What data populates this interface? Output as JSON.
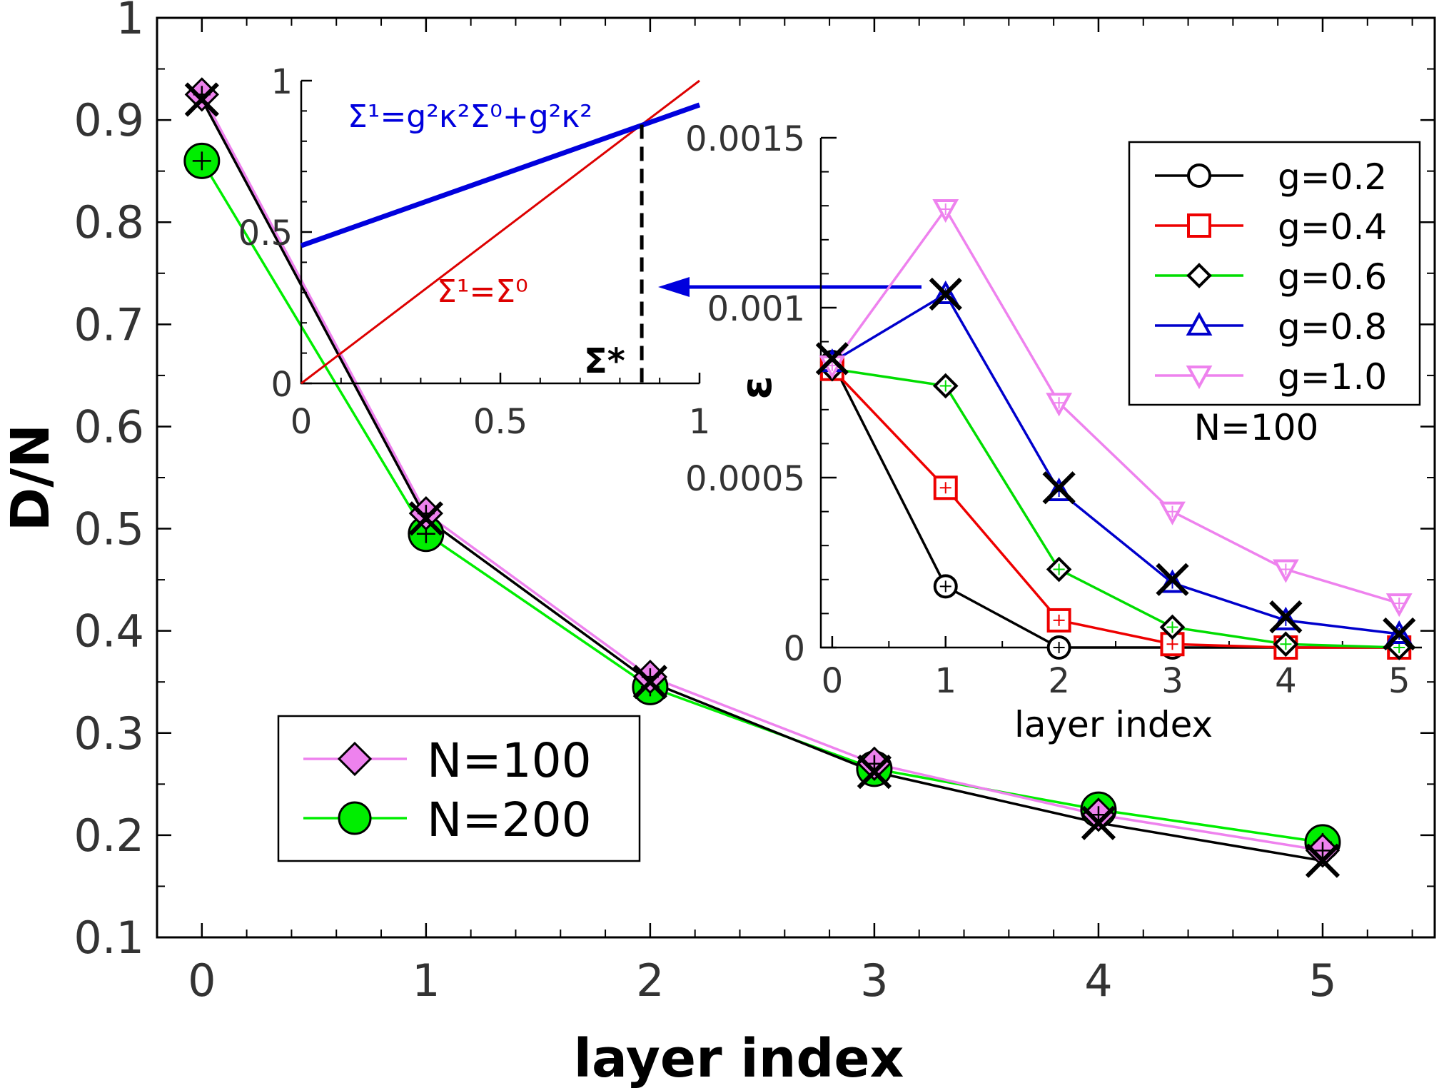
{
  "chart_data": [
    {
      "id": "main",
      "type": "line",
      "xlabel": "layer index",
      "ylabel": "D/N",
      "xlim": [
        -0.2,
        5.5
      ],
      "ylim": [
        0.1,
        1.0
      ],
      "xticks": [
        "0",
        "1",
        "2",
        "3",
        "4",
        "5"
      ],
      "yticks": [
        "0.1",
        "0.2",
        "0.3",
        "0.4",
        "0.5",
        "0.6",
        "0.7",
        "0.8",
        "0.9",
        "1"
      ],
      "legend": {
        "position": "lower-left",
        "entries": [
          "N=100",
          "N=200"
        ]
      },
      "series": [
        {
          "name": "N=100",
          "color": "#ee82ee",
          "marker": "diamond",
          "x": [
            0,
            1,
            2,
            3,
            4,
            5
          ],
          "values": [
            0.925,
            0.515,
            0.355,
            0.27,
            0.22,
            0.185
          ]
        },
        {
          "name": "N=200",
          "color": "#00ee00",
          "marker": "circle",
          "x": [
            0,
            1,
            2,
            3,
            4,
            5
          ],
          "values": [
            0.86,
            0.495,
            0.345,
            0.265,
            0.225,
            0.193
          ]
        },
        {
          "name": "",
          "color": "#000000",
          "marker": "x",
          "x": [
            0,
            1,
            2,
            3,
            4,
            5
          ],
          "values": [
            0.92,
            0.51,
            0.35,
            0.262,
            0.212,
            0.175
          ]
        }
      ]
    },
    {
      "id": "inset-sigma",
      "type": "line",
      "xlim": [
        0,
        1
      ],
      "ylim": [
        0,
        1
      ],
      "xticks": [
        "0",
        "0.5",
        "1"
      ],
      "yticks": [
        "0",
        "0.5",
        "1"
      ],
      "annotations": {
        "line1": "Σ¹=g²κ²Σ⁰+g²κ²",
        "line2": "Σ¹=Σ⁰",
        "fixed_point": "Σ*"
      },
      "series": [
        {
          "name": "",
          "color": "#0000dd",
          "x": [
            0,
            1
          ],
          "values": [
            0.455,
            0.92
          ]
        },
        {
          "name": "",
          "color": "#dd0000",
          "x": [
            0,
            1
          ],
          "values": [
            0,
            1
          ]
        }
      ],
      "sigma_star": 0.855
    },
    {
      "id": "inset-epsilon",
      "type": "line",
      "xlabel": "layer index",
      "ylabel": "ε",
      "xlim": [
        -0.1,
        5.2
      ],
      "ylim": [
        0,
        0.0015
      ],
      "xticks": [
        "0",
        "1",
        "2",
        "3",
        "4",
        "5"
      ],
      "yticks": [
        "0",
        "0.0005",
        "0.001",
        "0.0015"
      ],
      "legend": {
        "position": "top-right",
        "entries": [
          "g=0.2",
          "g=0.4",
          "g=0.6",
          "g=0.8",
          "g=1.0"
        ]
      },
      "note": "N=100",
      "series": [
        {
          "name": "g=0.2",
          "color": "#000000",
          "marker": "circle",
          "x": [
            0,
            1,
            2,
            3,
            4,
            5
          ],
          "values": [
            0.00084,
            0.00018,
            0.0,
            0.0,
            0.0,
            0.0
          ]
        },
        {
          "name": "g=0.4",
          "color": "#ee0000",
          "marker": "square",
          "x": [
            0,
            1,
            2,
            3,
            4,
            5
          ],
          "values": [
            0.00082,
            0.00047,
            8e-05,
            1e-05,
            0.0,
            0.0
          ]
        },
        {
          "name": "g=0.6",
          "color": "#00dd00",
          "marker": "diamond",
          "x": [
            0,
            1,
            2,
            3,
            4,
            5
          ],
          "values": [
            0.00082,
            0.00077,
            0.00023,
            6e-05,
            1e-05,
            0.0
          ]
        },
        {
          "name": "g=0.8",
          "color": "#0000cc",
          "marker": "triangle-up",
          "x": [
            0,
            1,
            2,
            3,
            4,
            5
          ],
          "values": [
            0.00084,
            0.00104,
            0.00046,
            0.00019,
            8e-05,
            4e-05
          ]
        },
        {
          "name": "g=1.0",
          "color": "#ee82ee",
          "marker": "triangle-down",
          "x": [
            0,
            1,
            2,
            3,
            4,
            5
          ],
          "values": [
            0.00083,
            0.00129,
            0.00072,
            0.0004,
            0.00023,
            0.00013
          ]
        },
        {
          "name": "",
          "color": "#000000",
          "marker": "x",
          "x": [
            0,
            1,
            2,
            3,
            4,
            5
          ],
          "values": [
            0.00085,
            0.00104,
            0.00047,
            0.0002,
            9e-05,
            4e-05
          ]
        }
      ]
    }
  ]
}
